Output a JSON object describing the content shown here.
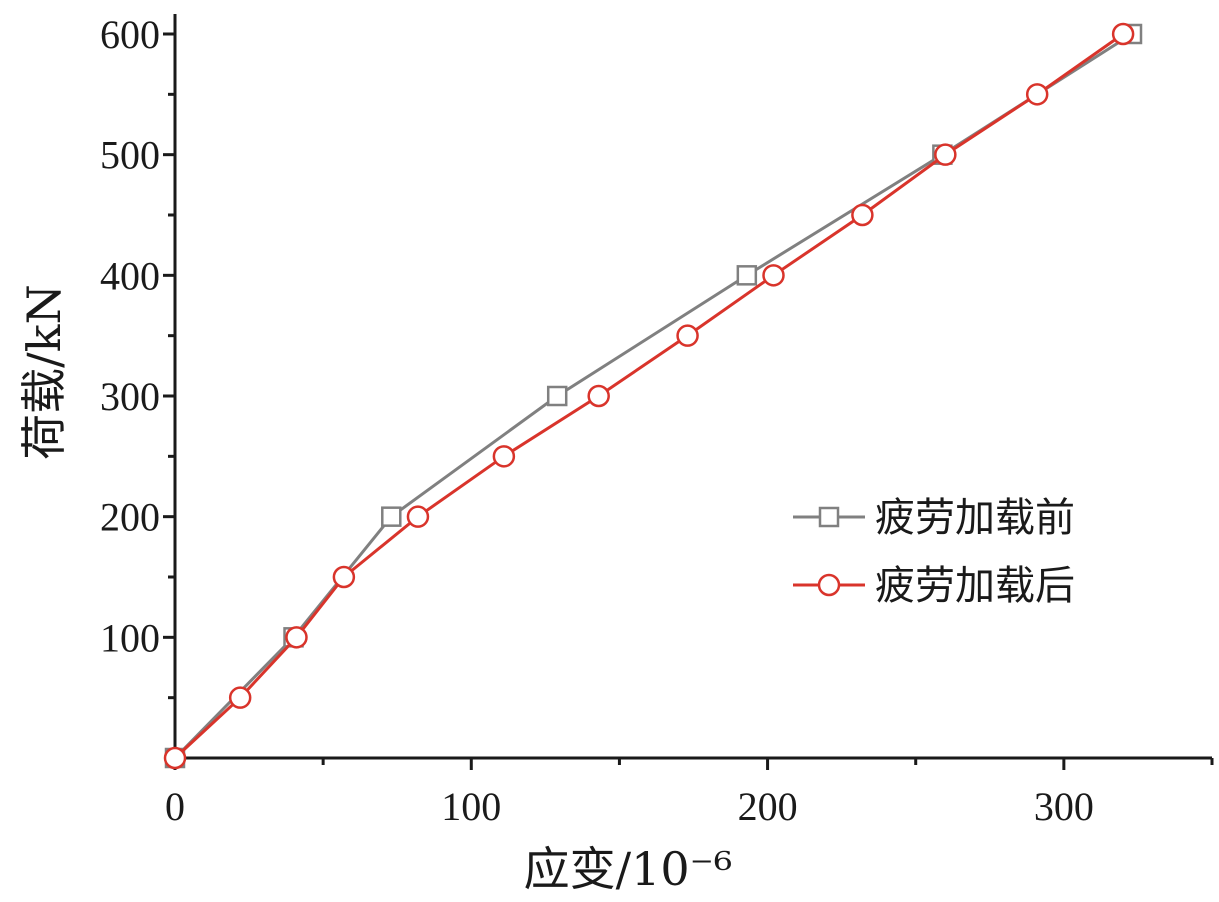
{
  "chart_data": {
    "type": "line",
    "title": "",
    "xlabel": "应变/10⁻⁶",
    "ylabel": "荷载/kN",
    "xlim": [
      0,
      350
    ],
    "ylim": [
      0,
      600
    ],
    "xticks": [
      0,
      100,
      200,
      300
    ],
    "xticks_minor": [
      50,
      150,
      250,
      350
    ],
    "yticks": [
      100,
      200,
      300,
      400,
      500,
      600
    ],
    "yticks_minor": [
      50,
      150,
      250,
      350,
      450,
      550
    ],
    "grid": false,
    "legend_position": "right",
    "series": [
      {
        "name": "疲劳加载前",
        "color": "#808080",
        "marker": "square",
        "x": [
          0,
          40,
          73,
          129,
          193,
          259,
          323
        ],
        "y": [
          0,
          100,
          200,
          300,
          400,
          500,
          600
        ]
      },
      {
        "name": "疲劳加载后",
        "color": "#d9342b",
        "marker": "circle",
        "x": [
          0,
          22,
          41,
          57,
          82,
          111,
          143,
          173,
          202,
          232,
          260,
          291,
          320
        ],
        "y": [
          0,
          50,
          100,
          150,
          200,
          250,
          300,
          350,
          400,
          450,
          500,
          550,
          600
        ]
      }
    ]
  }
}
